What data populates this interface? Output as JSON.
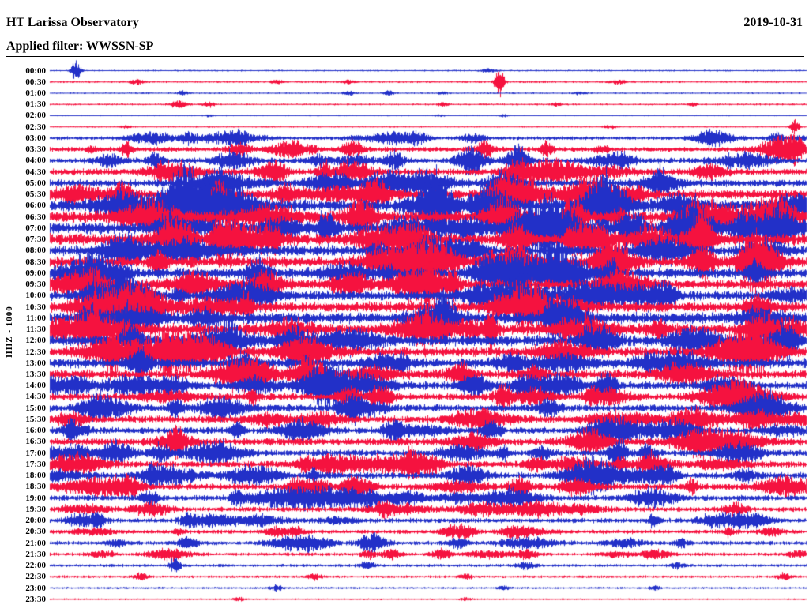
{
  "header": {
    "observatory": "HT Larissa Observatory",
    "date": "2019-10-31",
    "filter_label": "Applied filter: WWSSN-SP"
  },
  "axis": {
    "ylabel": "HHZ - 1000"
  },
  "chart_data": {
    "type": "line",
    "subtype": "helicorder-seismogram",
    "title": "HT Larissa Observatory",
    "date": "2019-10-31",
    "filter": "WWSSN-SP",
    "ylabel": "HHZ - 1000",
    "trace_interval_minutes": 30,
    "legend": "none",
    "grid": false,
    "colors": {
      "even_trace": "#2230c8",
      "odd_trace": "#f5123f",
      "text": "#000000",
      "background": "#ffffff"
    },
    "traces": [
      {
        "label": "00:00",
        "amp": 1.0,
        "bursts": [
          [
            0.034,
            13,
            4
          ],
          [
            0.58,
            2.5,
            7
          ]
        ]
      },
      {
        "label": "00:30",
        "amp": 1.2,
        "bursts": [
          [
            0.115,
            2.5,
            6
          ],
          [
            0.3,
            2,
            5
          ],
          [
            0.395,
            2.2,
            5
          ],
          [
            0.594,
            16,
            4
          ],
          [
            0.75,
            2,
            8
          ]
        ]
      },
      {
        "label": "01:00",
        "amp": 1.0,
        "bursts": [
          [
            0.175,
            3,
            5
          ],
          [
            0.395,
            3.2,
            5
          ],
          [
            0.447,
            4,
            4
          ],
          [
            0.52,
            2,
            5
          ],
          [
            0.7,
            1.8,
            6
          ]
        ]
      },
      {
        "label": "01:30",
        "amp": 1.1,
        "bursts": [
          [
            0.17,
            5,
            7
          ],
          [
            0.21,
            3,
            5
          ],
          [
            0.52,
            2,
            5
          ],
          [
            0.67,
            2,
            5
          ],
          [
            0.85,
            1.8,
            5
          ]
        ]
      },
      {
        "label": "02:00",
        "amp": 0.7,
        "bursts": [
          [
            0.21,
            2.5,
            4
          ],
          [
            0.515,
            2,
            4
          ],
          [
            0.6,
            2.5,
            4
          ]
        ]
      },
      {
        "label": "02:30",
        "amp": 0.9,
        "bursts": [
          [
            0.1,
            1.8,
            5
          ],
          [
            0.74,
            2.2,
            6
          ],
          [
            0.985,
            9,
            4
          ]
        ]
      },
      {
        "label": "03:00",
        "amp": 2.2,
        "bursts": [
          [
            0.24,
            2.5,
            9
          ],
          [
            0.56,
            2.5,
            10
          ]
        ]
      },
      {
        "label": "03:30",
        "amp": 3.0,
        "bursts": [
          [
            0.25,
            3,
            9
          ],
          [
            0.575,
            4,
            7
          ],
          [
            0.985,
            3.5,
            6
          ]
        ]
      },
      {
        "label": "04:00",
        "amp": 3.5,
        "bursts": [
          [
            0.455,
            3,
            9
          ],
          [
            0.62,
            3.5,
            10
          ]
        ]
      },
      {
        "label": "04:30",
        "amp": 4.0,
        "bursts": [
          [
            0.3,
            3,
            9
          ],
          [
            0.62,
            3.5,
            12
          ]
        ]
      },
      {
        "label": "05:00",
        "amp": 4.5,
        "bursts": [
          [
            0.455,
            2.8,
            10
          ],
          [
            0.6,
            3.2,
            14
          ]
        ]
      },
      {
        "label": "05:30",
        "amp": 6.0,
        "bursts": [
          [
            0.43,
            2.5,
            12
          ],
          [
            0.6,
            3,
            16
          ]
        ]
      },
      {
        "label": "06:00",
        "amp": 7.5,
        "bursts": [
          [
            0.58,
            3,
            18
          ]
        ]
      },
      {
        "label": "06:30",
        "amp": 7.5,
        "bursts": [
          [
            0.6,
            2.8,
            16
          ]
        ]
      },
      {
        "label": "07:00",
        "amp": 7.0,
        "bursts": [
          [
            0.16,
            2.5,
            14
          ]
        ]
      },
      {
        "label": "07:30",
        "amp": 7.0,
        "bursts": [
          [
            0.17,
            2.8,
            12
          ]
        ]
      },
      {
        "label": "08:00",
        "amp": 6.5
      },
      {
        "label": "08:30",
        "amp": 6.5
      },
      {
        "label": "09:00",
        "amp": 6.5
      },
      {
        "label": "09:30",
        "amp": 6.0
      },
      {
        "label": "10:00",
        "amp": 6.0
      },
      {
        "label": "10:30",
        "amp": 6.5
      },
      {
        "label": "11:00",
        "amp": 7.0
      },
      {
        "label": "11:30",
        "amp": 7.0
      },
      {
        "label": "12:00",
        "amp": 6.5
      },
      {
        "label": "12:30",
        "amp": 6.0
      },
      {
        "label": "13:00",
        "amp": 6.0
      },
      {
        "label": "13:30",
        "amp": 5.5
      },
      {
        "label": "14:00",
        "amp": 5.0
      },
      {
        "label": "14:30",
        "amp": 4.5
      },
      {
        "label": "15:00",
        "amp": 4.5
      },
      {
        "label": "15:30",
        "amp": 4.5
      },
      {
        "label": "16:00",
        "amp": 4.0
      },
      {
        "label": "16:30",
        "amp": 4.5
      },
      {
        "label": "17:00",
        "amp": 4.0
      },
      {
        "label": "17:30",
        "amp": 4.0
      },
      {
        "label": "18:00",
        "amp": 4.0
      },
      {
        "label": "18:30",
        "amp": 4.0
      },
      {
        "label": "19:00",
        "amp": 3.5
      },
      {
        "label": "19:30",
        "amp": 3.0
      },
      {
        "label": "20:00",
        "amp": 3.0,
        "bursts": [
          [
            0.185,
            3,
            8
          ]
        ]
      },
      {
        "label": "20:30",
        "amp": 2.5,
        "bursts": [
          [
            0.3,
            2.5,
            8
          ]
        ]
      },
      {
        "label": "21:00",
        "amp": 2.5,
        "bursts": [
          [
            0.42,
            2.5,
            8
          ]
        ]
      },
      {
        "label": "21:30",
        "amp": 2.0,
        "bursts": [
          [
            0.42,
            2.5,
            6
          ],
          [
            0.63,
            2.5,
            8
          ]
        ]
      },
      {
        "label": "22:00",
        "amp": 1.8,
        "bursts": [
          [
            0.165,
            5,
            5
          ],
          [
            0.42,
            2.5,
            7
          ],
          [
            0.63,
            2.5,
            8
          ],
          [
            0.83,
            2,
            6
          ]
        ]
      },
      {
        "label": "22:30",
        "amp": 1.6,
        "bursts": [
          [
            0.12,
            3,
            6
          ],
          [
            0.35,
            2.5,
            6
          ],
          [
            0.55,
            2,
            6
          ],
          [
            0.97,
            3,
            5
          ]
        ]
      },
      {
        "label": "23:00",
        "amp": 1.3,
        "bursts": [
          [
            0.3,
            2.5,
            6
          ],
          [
            0.6,
            2,
            6
          ],
          [
            0.8,
            2,
            5
          ]
        ]
      },
      {
        "label": "23:30",
        "amp": 1.0,
        "bursts": [
          [
            0.25,
            2,
            6
          ],
          [
            0.55,
            1.8,
            6
          ]
        ]
      }
    ]
  }
}
